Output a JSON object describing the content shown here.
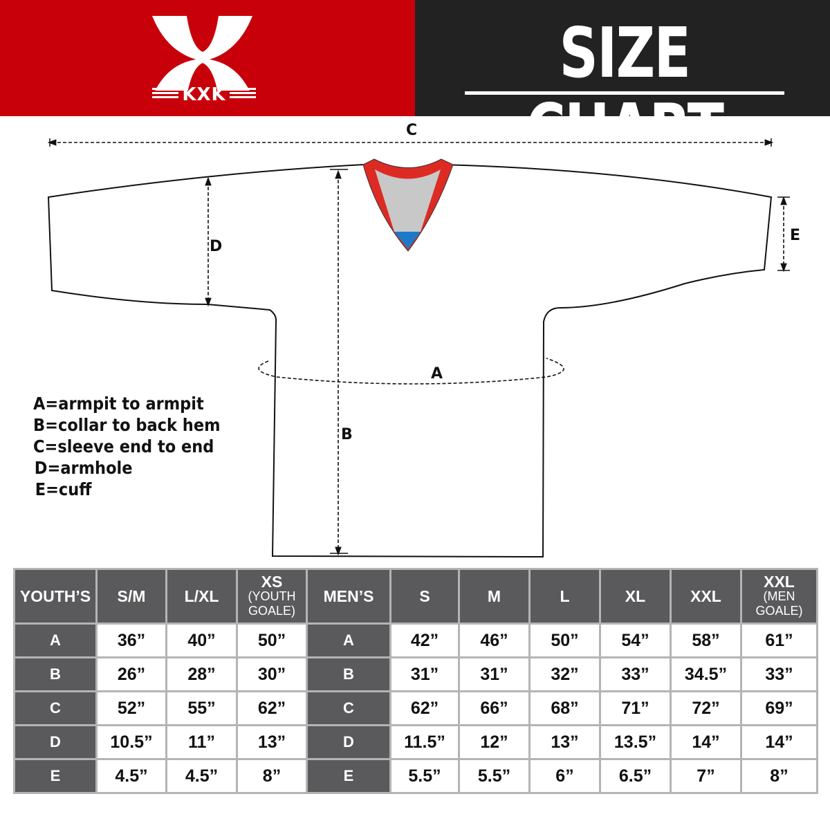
{
  "brand": {
    "name": "KXK",
    "colors": {
      "red": "#c8000a",
      "dark": "#222222",
      "table_header": "#5a5a5c"
    }
  },
  "header": {
    "title": "SIZE CHART"
  },
  "diagram": {
    "labels": {
      "a": "A",
      "b": "B",
      "c": "C",
      "d": "D",
      "e": "E"
    },
    "legend": [
      "A=armpit to armpit",
      "B=collar to back hem",
      "C=sleeve end to end",
      "D=armhole",
      "E=cuff"
    ]
  },
  "table": {
    "youth_header": "YOUTH’S",
    "youth_sizes": [
      {
        "main": "S/M",
        "sub": ""
      },
      {
        "main": "L/XL",
        "sub": ""
      },
      {
        "main": "XS",
        "sub": "(YOUTH GOALE)"
      }
    ],
    "men_header": "MEN’S",
    "men_sizes": [
      {
        "main": "S",
        "sub": ""
      },
      {
        "main": "M",
        "sub": ""
      },
      {
        "main": "L",
        "sub": ""
      },
      {
        "main": "XL",
        "sub": ""
      },
      {
        "main": "XXL",
        "sub": ""
      },
      {
        "main": "XXL",
        "sub": "(MEN GOALE)"
      }
    ],
    "rows": [
      {
        "label": "A",
        "youth": [
          "36”",
          "40”",
          "50”"
        ],
        "men": [
          "42”",
          "46”",
          "50”",
          "54”",
          "58”",
          "61”"
        ]
      },
      {
        "label": "B",
        "youth": [
          "26”",
          "28”",
          "30”"
        ],
        "men": [
          "31”",
          "31”",
          "32”",
          "33”",
          "34.5”",
          "33”"
        ]
      },
      {
        "label": "C",
        "youth": [
          "52”",
          "55”",
          "62”"
        ],
        "men": [
          "62”",
          "66”",
          "68”",
          "71”",
          "72”",
          "69”"
        ]
      },
      {
        "label": "D",
        "youth": [
          "10.5”",
          "11”",
          "13”"
        ],
        "men": [
          "11.5”",
          "12”",
          "13”",
          "13.5”",
          "14”",
          "14”"
        ]
      },
      {
        "label": "E",
        "youth": [
          "4.5”",
          "4.5”",
          "8”"
        ],
        "men": [
          "5.5”",
          "5.5”",
          "6”",
          "6.5”",
          "7”",
          "8”"
        ]
      }
    ]
  }
}
